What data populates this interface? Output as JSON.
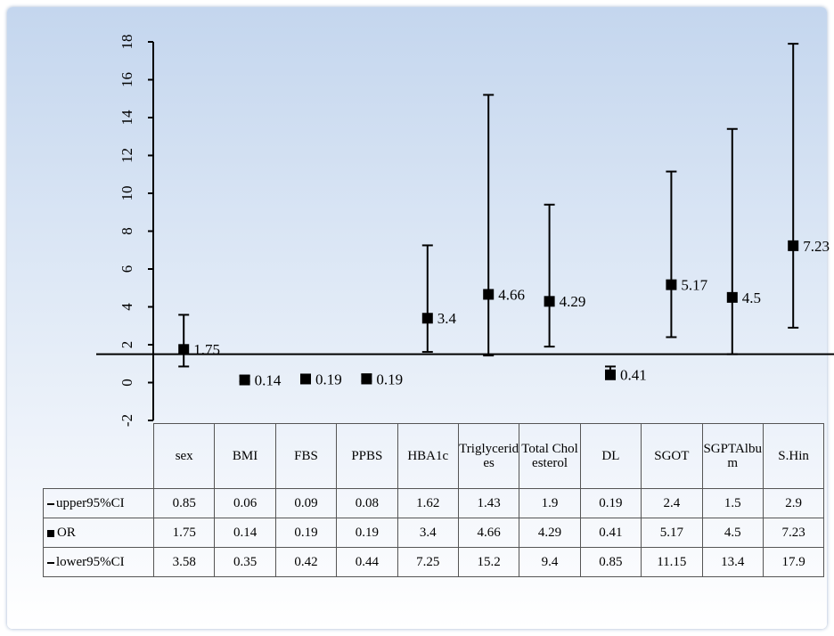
{
  "chart_data": {
    "type": "errorbar",
    "categories": [
      "sex",
      "BMI",
      "FBS",
      "PPBS",
      "HBA1c",
      "Triglycerides",
      "Total Cholesterol",
      "DL",
      "SGOT",
      "SGPTAlbum",
      "S.Hin"
    ],
    "series": [
      {
        "name": "upper95%CI",
        "color": "#000000",
        "values": [
          0.85,
          0.06,
          0.09,
          0.08,
          1.62,
          1.43,
          1.9,
          0.19,
          2.4,
          1.5,
          2.9
        ]
      },
      {
        "name": "OR",
        "color": "#000000",
        "values": [
          1.75,
          0.14,
          0.19,
          0.19,
          3.4,
          4.66,
          4.29,
          0.41,
          5.17,
          4.5,
          7.23
        ]
      },
      {
        "name": "lower95%CI",
        "color": "#000000",
        "values": [
          3.58,
          0.35,
          0.42,
          0.44,
          7.25,
          15.2,
          9.4,
          0.85,
          11.15,
          13.4,
          17.9
        ]
      }
    ],
    "ylim": [
      -2,
      18
    ],
    "yticks": [
      -2,
      0,
      2,
      4,
      6,
      8,
      10,
      12,
      14,
      16,
      18
    ],
    "reference_line": 1.5
  }
}
